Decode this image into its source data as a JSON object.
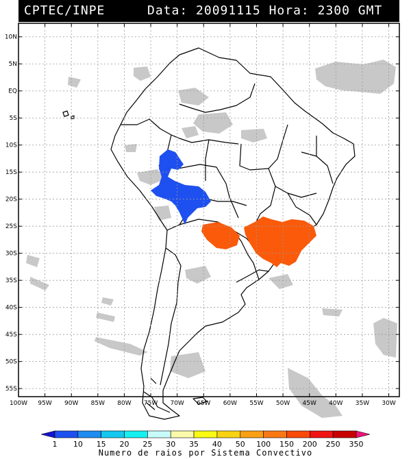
{
  "header": {
    "org": "CPTEC/INPE",
    "data_label": "Data:",
    "date": "20091115",
    "hora_label": "Hora:",
    "time": "2300 GMT"
  },
  "map": {
    "lat_labels": [
      "10N",
      "5N",
      "EQ",
      "5S",
      "10S",
      "15S",
      "20S",
      "25S",
      "30S",
      "35S",
      "40S",
      "45S",
      "50S",
      "55S"
    ],
    "lon_labels": [
      "100W",
      "95W",
      "90W",
      "85W",
      "80W",
      "75W",
      "70W",
      "65W",
      "60W",
      "55W",
      "50W",
      "45W",
      "40W",
      "35W",
      "30W"
    ],
    "lat_range": [
      12.5,
      -56.5
    ],
    "lon_range": [
      -100,
      -28
    ],
    "systems": [
      {
        "name": "bolivia-peru-system",
        "category": "5-10",
        "color": "#1e50f0"
      },
      {
        "name": "southeast-brazil-system",
        "category": "150-200",
        "color": "#fa5a0a"
      }
    ],
    "colors": {
      "cloud": "#c8c8c8",
      "land_outline": "#000000",
      "grid": "#999999"
    }
  },
  "colorbar": {
    "labels": [
      "1",
      "10",
      "15",
      "20",
      "25",
      "30",
      "35",
      "40",
      "50",
      "100",
      "150",
      "200",
      "250",
      "350"
    ],
    "colors": [
      "#1414d2",
      "#1e50f0",
      "#1e8cf0",
      "#14c8f0",
      "#14f0f0",
      "#c8fafa",
      "#fafaaa",
      "#fafa14",
      "#fad214",
      "#faa014",
      "#fa7814",
      "#fa4a0a",
      "#f01414",
      "#c80000",
      "#f01478"
    ],
    "title": "Numero de raios por Sistema Convectivo"
  }
}
